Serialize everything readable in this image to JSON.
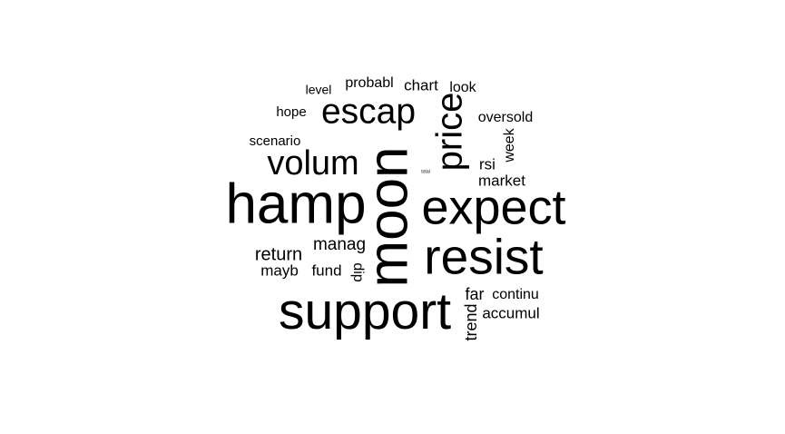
{
  "word_cloud": {
    "text_color": "#000000",
    "background_color": "#ffffff",
    "words": [
      {
        "id": "hamp",
        "text": "hamp"
      },
      {
        "id": "moon",
        "text": "moon"
      },
      {
        "id": "expect",
        "text": "expect"
      },
      {
        "id": "support",
        "text": "support"
      },
      {
        "id": "resist",
        "text": "resist"
      },
      {
        "id": "price",
        "text": "price"
      },
      {
        "id": "escap",
        "text": "escap"
      },
      {
        "id": "volum",
        "text": "volum"
      },
      {
        "id": "return",
        "text": "return"
      },
      {
        "id": "manag",
        "text": "manag"
      },
      {
        "id": "mayb",
        "text": "mayb"
      },
      {
        "id": "fund",
        "text": "fund"
      },
      {
        "id": "dip",
        "text": "dip"
      },
      {
        "id": "far",
        "text": "far"
      },
      {
        "id": "continu",
        "text": "continu"
      },
      {
        "id": "accumul",
        "text": "accumul"
      },
      {
        "id": "trend",
        "text": "trend"
      },
      {
        "id": "market",
        "text": "market"
      },
      {
        "id": "rsi",
        "text": "rsi"
      },
      {
        "id": "week",
        "text": "week"
      },
      {
        "id": "oversold",
        "text": "oversold"
      },
      {
        "id": "look",
        "text": "look"
      },
      {
        "id": "chart",
        "text": "chart"
      },
      {
        "id": "probabl",
        "text": "probabl"
      },
      {
        "id": "level",
        "text": "level"
      },
      {
        "id": "hope",
        "text": "hope"
      },
      {
        "id": "scenario",
        "text": "scenario"
      },
      {
        "id": "total",
        "text": "total"
      }
    ]
  }
}
